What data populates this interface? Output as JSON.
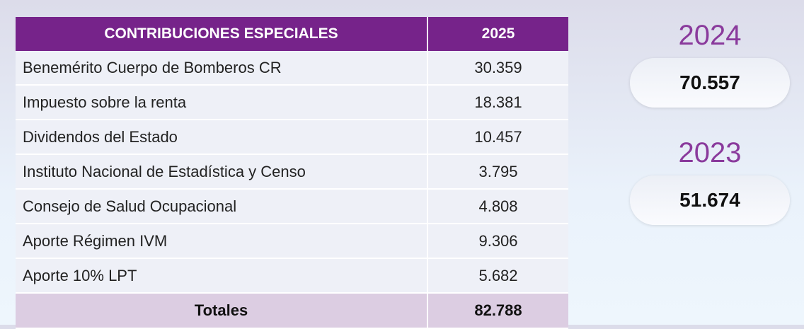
{
  "table": {
    "headers": [
      "CONTRIBUCIONES ESPECIALES",
      "2025"
    ],
    "rows": [
      [
        "Benemérito Cuerpo de Bomberos CR",
        "30.359"
      ],
      [
        "Impuesto sobre la renta",
        "18.381"
      ],
      [
        "Dividendos del Estado",
        "10.457"
      ],
      [
        "Instituto Nacional de Estadística y Censo",
        "3.795"
      ],
      [
        "Consejo de Salud Ocupacional",
        "4.808"
      ],
      [
        "Aporte Régimen IVM",
        "9.306"
      ],
      [
        "Aporte 10% LPT",
        "5.682"
      ]
    ],
    "total_label": "Totales",
    "total_value": "82.788"
  },
  "comparisons": [
    {
      "year": "2024",
      "value": "70.557"
    },
    {
      "year": "2023",
      "value": "51.674"
    }
  ],
  "colors": {
    "header": "#76238a",
    "year": "#8a3a9c",
    "total_row": "#dccde2"
  }
}
